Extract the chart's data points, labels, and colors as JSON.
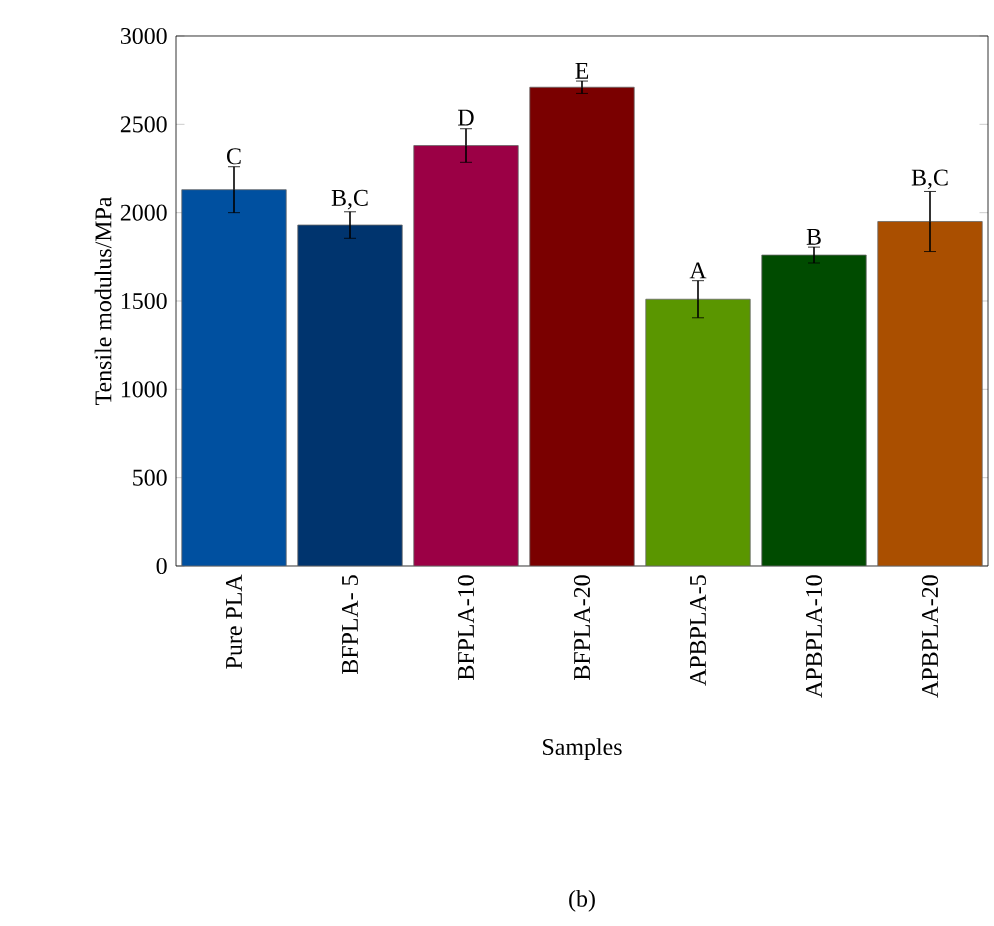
{
  "chart_data": {
    "type": "bar",
    "xlabel": "Samples",
    "ylabel": "Tensile modulus/MPa",
    "categories": [
      "Pure PLA",
      "BFPLA- 5",
      "BFPLA-10",
      "BFPLA-20",
      "APBPLA-5",
      "APBPLA-10",
      "APBPLA-20"
    ],
    "values": [
      2130,
      1930,
      2380,
      2710,
      1510,
      1760,
      1950
    ],
    "errors": [
      130,
      75,
      95,
      35,
      105,
      45,
      170
    ],
    "colors": [
      "#0050a0",
      "#00346e",
      "#9b0045",
      "#7a0000",
      "#5a9600",
      "#004b00",
      "#aa4f00"
    ],
    "ylim": [
      0,
      3000
    ],
    "yticks": [
      0,
      500,
      1000,
      1500,
      2000,
      2500,
      3000
    ],
    "annotations": [
      {
        "text": "C",
        "x": "Pure PLA",
        "y": 2260
      },
      {
        "text": "B,C",
        "x": "BFPLA- 5",
        "y": 2005
      },
      {
        "text": "D",
        "x": "BFPLA-10",
        "y": 2480
      },
      {
        "text": "E",
        "x": "BFPLA-20",
        "y": 2745
      },
      {
        "text": "A",
        "x": "APBPLA-5",
        "y": 1615
      },
      {
        "text": "B",
        "x": "APBPLA-10",
        "y": 1805
      },
      {
        "text": "B,C",
        "x": "APBPLA-20",
        "y": 2120
      },
      "(b)"
    ]
  }
}
